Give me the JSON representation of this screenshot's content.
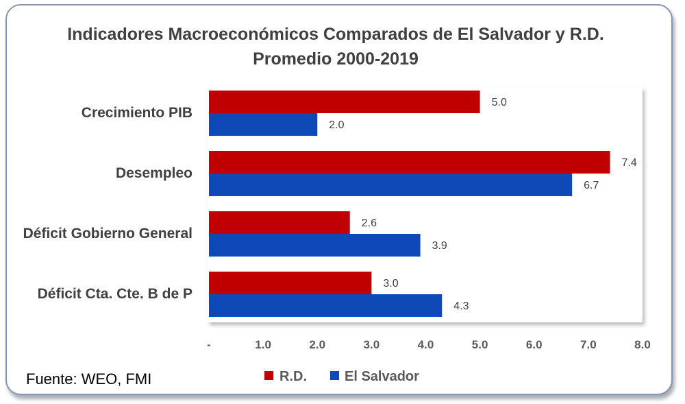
{
  "source_note": "Fuente: WEO, FMI",
  "colors": {
    "rd": "#c00000",
    "el_salvador": "#0f49b8"
  },
  "chart_data": {
    "type": "bar",
    "orientation": "horizontal",
    "title": "Indicadores Macroeconómicos Comparados de El Salvador y R.D.",
    "subtitle": "Promedio 2000-2019",
    "categories": [
      "Crecimiento PIB",
      "Desempleo",
      "Déficit Gobierno General",
      "Déficit Cta. Cte. B de P"
    ],
    "series": [
      {
        "name": "R.D.",
        "values": [
          5.0,
          7.4,
          2.6,
          3.0
        ],
        "labels": [
          "5.0",
          "7.4",
          "2.6",
          "3.0"
        ]
      },
      {
        "name": "El Salvador",
        "values": [
          2.0,
          6.7,
          3.9,
          4.3
        ],
        "labels": [
          "2.0",
          "6.7",
          "3.9",
          "4.3"
        ]
      }
    ],
    "xlim": [
      0,
      8
    ],
    "xticks": [
      "-",
      "1.0",
      "2.0",
      "3.0",
      "4.0",
      "5.0",
      "6.0",
      "7.0",
      "8.0"
    ],
    "grid": false,
    "legend_position": "bottom"
  }
}
